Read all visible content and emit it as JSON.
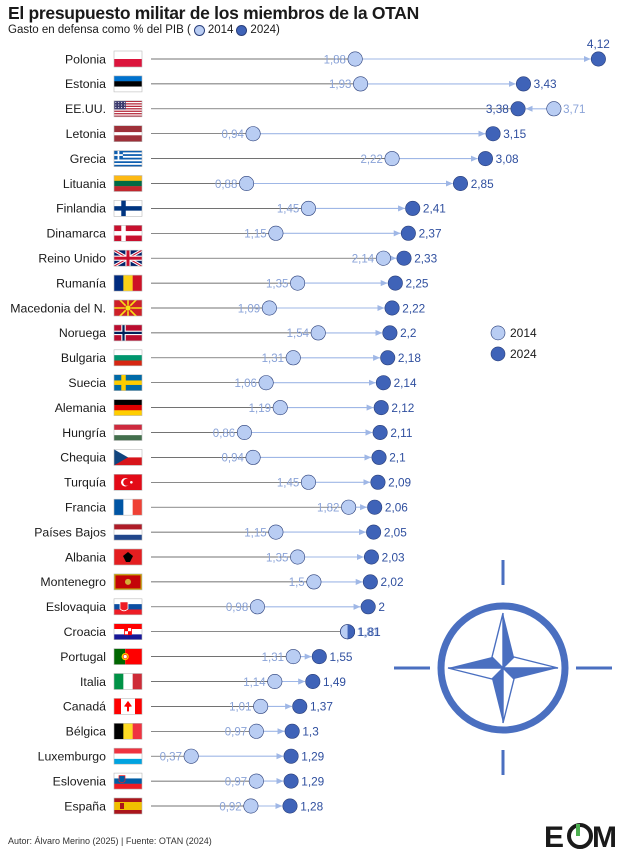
{
  "header": {
    "title": "El presupuesto militar de los miembros de la OTAN",
    "subtitle_prefix": "Gasto en defensa como % del PIB (",
    "subtitle_2014": "2014",
    "subtitle_2024": "2024)"
  },
  "colors": {
    "c2014": "#b9cdf3",
    "c2024": "#3f63b8",
    "outline": "#2a3f7a",
    "label": "#2f4f9f",
    "light_label": "#8aa3d8",
    "line": "#444444",
    "arrow": "#9fb7e6",
    "nato": "#4a6fc0"
  },
  "legend": {
    "position": "right",
    "items": [
      "2014",
      "2024"
    ]
  },
  "chart_data": {
    "type": "dumbbell",
    "title": "El presupuesto militar de los miembros de la OTAN",
    "subtitle": "Gasto en defensa como % del PIB",
    "decimal_separator": ",",
    "xlim": [
      0,
      4.3
    ],
    "grid": false,
    "legend": "right",
    "series": [
      {
        "name": "2014",
        "values": [
          1.88,
          1.93,
          3.71,
          0.94,
          2.22,
          0.88,
          1.45,
          1.15,
          2.14,
          1.35,
          1.09,
          1.54,
          1.31,
          1.06,
          1.19,
          0.86,
          0.94,
          1.45,
          1.82,
          1.15,
          1.35,
          1.5,
          0.98,
          1.81,
          1.31,
          1.14,
          1.01,
          0.97,
          0.37,
          0.97,
          0.92
        ]
      },
      {
        "name": "2024",
        "values": [
          4.12,
          3.43,
          3.38,
          3.15,
          3.08,
          2.85,
          2.41,
          2.37,
          2.33,
          2.25,
          2.22,
          2.2,
          2.18,
          2.14,
          2.12,
          2.11,
          2.1,
          2.09,
          2.06,
          2.05,
          2.03,
          2.02,
          2,
          1.81,
          1.55,
          1.49,
          1.37,
          1.3,
          1.29,
          1.29,
          1.28
        ]
      }
    ],
    "categories": [
      "Polonia",
      "Estonia",
      "EE.UU.",
      "Letonia",
      "Grecia",
      "Lituania",
      "Finlandia",
      "Dinamarca",
      "Reino Unido",
      "Rumanía",
      "Macedonia del N.",
      "Noruega",
      "Bulgaria",
      "Suecia",
      "Alemania",
      "Hungría",
      "Chequia",
      "Turquía",
      "Francia",
      "Países Bajos",
      "Albania",
      "Montenegro",
      "Eslovaquia",
      "Croacia",
      "Portugal",
      "Italia",
      "Canadá",
      "Bélgica",
      "Luxemburgo",
      "Eslovenia",
      "España"
    ],
    "labels_2014": [
      "1,88",
      "1,93",
      "3,71",
      "0,94",
      "2,22",
      "0,88",
      "1,45",
      "1,15",
      "2,14",
      "1,35",
      "1,09",
      "1,54",
      "1,31",
      "1,06",
      "1,19",
      "0,86",
      "0,94",
      "1,45",
      "1,82",
      "1,15",
      "1,35",
      "1,5",
      "0,98",
      "1,81",
      "1,31",
      "1,14",
      "1,01",
      "0,97",
      "0,37",
      "0,97",
      "0,92"
    ],
    "labels_2024": [
      "4,12",
      "3,43",
      "3,38",
      "3,15",
      "3,08",
      "2,85",
      "2,41",
      "2,37",
      "2,33",
      "2,25",
      "2,22",
      "2,2",
      "2,18",
      "2,14",
      "2,12",
      "2,11",
      "2,1",
      "2,09",
      "2,06",
      "2,05",
      "2,03",
      "2,02",
      "2",
      "1,81",
      "1,55",
      "1,49",
      "1,37",
      "1,3",
      "1,29",
      "1,29",
      "1,28"
    ],
    "flags": [
      "poland-flag",
      "estonia-flag",
      "usa-flag",
      "latvia-flag",
      "greece-flag",
      "lithuania-flag",
      "finland-flag",
      "denmark-flag",
      "uk-flag",
      "romania-flag",
      "north-macedonia-flag",
      "norway-flag",
      "bulgaria-flag",
      "sweden-flag",
      "germany-flag",
      "hungary-flag",
      "czechia-flag",
      "turkey-flag",
      "france-flag",
      "netherlands-flag",
      "albania-flag",
      "montenegro-flag",
      "slovakia-flag",
      "croatia-flag",
      "portugal-flag",
      "italy-flag",
      "canada-flag",
      "belgium-flag",
      "luxembourg-flag",
      "slovenia-flag",
      "spain-flag"
    ]
  },
  "decoration": {
    "icon": "nato-compass-star-icon"
  },
  "footer": {
    "credit": "Autor: Álvaro Merino (2025) | Fuente: OTAN (2024)"
  },
  "brand": {
    "logo_text": "EOM"
  }
}
